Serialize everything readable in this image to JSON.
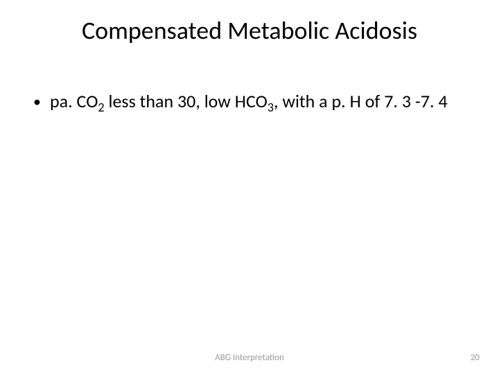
{
  "slide": {
    "title": "Compensated Metabolic Acidosis",
    "bullet": {
      "marker": "•",
      "segments": {
        "s1": "pa. CO",
        "sub1": "2",
        "s2": " less than 30, low HCO",
        "sub2": "3",
        "s3": ", with a p. H of 7. 3 -7. 4"
      }
    },
    "footer": {
      "center": "ABG Interpretation",
      "page": "20"
    }
  },
  "style": {
    "background_color": "#ffffff",
    "title_fontsize": 36,
    "title_color": "#000000",
    "body_fontsize": 26,
    "body_color": "#000000",
    "footer_fontsize": 13,
    "footer_color": "#9a9a9a"
  }
}
